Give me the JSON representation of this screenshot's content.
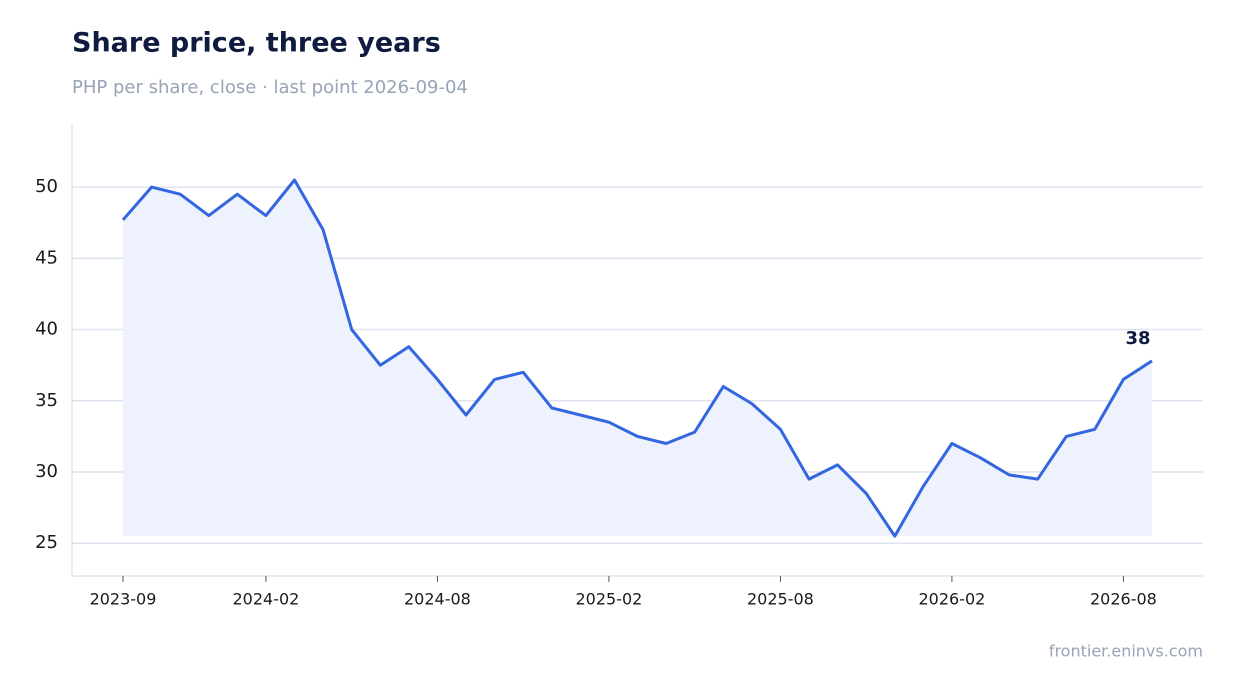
{
  "chart_data": {
    "type": "line",
    "title": "Share price, three years",
    "subtitle": "PHP per share, close · last point 2026-09-04",
    "source": "frontier.eninvs.com",
    "x": [
      "2023-09",
      "2023-10",
      "2023-11",
      "2023-12",
      "2024-01",
      "2024-02",
      "2024-03",
      "2024-04",
      "2024-05",
      "2024-06",
      "2024-07",
      "2024-08",
      "2024-09",
      "2024-10",
      "2024-11",
      "2024-12",
      "2025-01",
      "2025-02",
      "2025-03",
      "2025-04",
      "2025-05",
      "2025-06",
      "2025-07",
      "2025-08",
      "2025-09",
      "2025-10",
      "2025-11",
      "2025-12",
      "2026-01",
      "2026-02",
      "2026-03",
      "2026-04",
      "2026-05",
      "2026-06",
      "2026-07",
      "2026-08",
      "2026-09"
    ],
    "series": [
      {
        "name": "Close",
        "color": "#3366e0",
        "values": [
          47.7,
          50,
          49.5,
          48,
          49.5,
          48,
          50.5,
          47,
          40,
          37.5,
          38.8,
          36.5,
          34,
          36.5,
          37,
          34.5,
          34,
          33.5,
          32.5,
          32,
          32.8,
          36,
          34.8,
          33,
          29.5,
          30.5,
          28.5,
          25.5,
          29,
          32,
          31,
          29.8,
          29.5,
          32.5,
          33,
          36.5,
          37.8
        ],
        "value_labels": [
          null,
          null,
          null,
          null,
          null,
          null,
          null,
          null,
          null,
          null,
          null,
          null,
          null,
          null,
          null,
          null,
          null,
          null,
          null,
          null,
          null,
          null,
          null,
          null,
          null,
          null,
          null,
          null,
          null,
          null,
          null,
          null,
          null,
          null,
          null,
          null,
          "38"
        ]
      }
    ],
    "xticks": [
      "2023-09",
      "2024-02",
      "2024-08",
      "2025-02",
      "2025-08",
      "2026-02",
      "2026-08"
    ],
    "ylim": [
      22.7,
      54.5
    ],
    "yticks": [
      25,
      30,
      35,
      40,
      45,
      50
    ],
    "grid": true,
    "area_fill": "#eef2fc"
  }
}
